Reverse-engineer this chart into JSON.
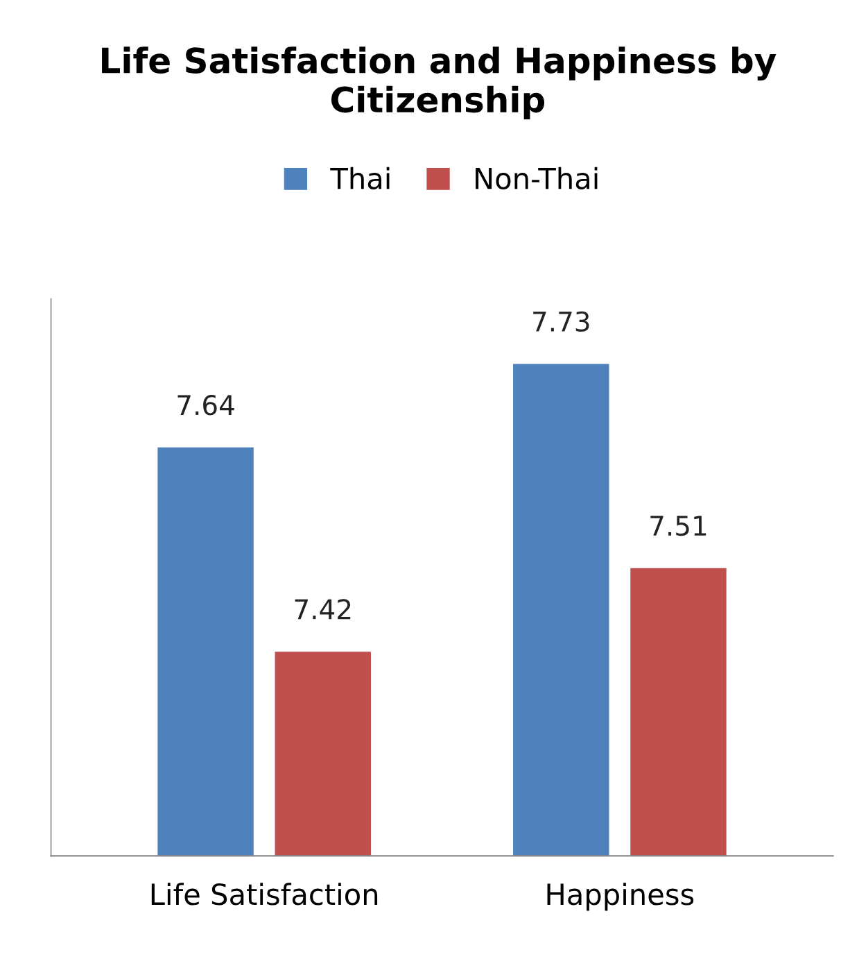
{
  "chart_data": {
    "type": "bar",
    "title": "Life Satisfaction and Happiness by Citizenship",
    "categories": [
      "Life Satisfaction",
      "Happiness"
    ],
    "series": [
      {
        "name": "Thai",
        "color": "#4f81bd",
        "values": [
          7.64,
          7.73
        ]
      },
      {
        "name": "Non-Thai",
        "color": "#c0504d",
        "values": [
          7.42,
          7.51
        ]
      }
    ],
    "ylim": [
      7.2,
      7.8
    ],
    "tick_labels": "x",
    "data_labels": true,
    "legend": "top",
    "grid": false
  }
}
